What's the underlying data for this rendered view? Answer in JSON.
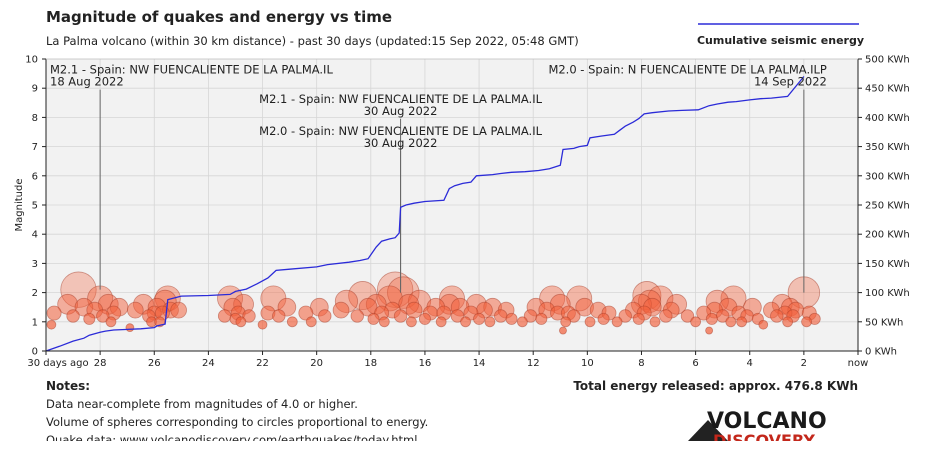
{
  "chart_data": {
    "type": "scatter",
    "title": "Magnitude of quakes and energy vs time",
    "subtitle": "La Palma volcano (within 30 km distance) - past 30 days (updated:15 Sep 2022, 05:48 GMT)",
    "ylabel": "Magnitude",
    "xlabel": "",
    "legend": {
      "label": "Cumulative seismic energy",
      "placement": "top-right",
      "color": "#2b2bd8"
    },
    "xlim": [
      30,
      0
    ],
    "ylim": [
      0,
      10
    ],
    "y2lim": [
      0,
      500
    ],
    "x_ticks": [
      {
        "x": 30,
        "label": "30 days ago"
      },
      {
        "x": 28,
        "label": "28"
      },
      {
        "x": 26,
        "label": "26"
      },
      {
        "x": 24,
        "label": "24"
      },
      {
        "x": 22,
        "label": "22"
      },
      {
        "x": 20,
        "label": "20"
      },
      {
        "x": 18,
        "label": "18"
      },
      {
        "x": 16,
        "label": "16"
      },
      {
        "x": 14,
        "label": "14"
      },
      {
        "x": 12,
        "label": "12"
      },
      {
        "x": 10,
        "label": "10"
      },
      {
        "x": 8,
        "label": "8"
      },
      {
        "x": 6,
        "label": "6"
      },
      {
        "x": 4,
        "label": "4"
      },
      {
        "x": 2,
        "label": "2"
      },
      {
        "x": 0,
        "label": "now"
      }
    ],
    "y_ticks": [
      {
        "y": 0,
        "label": "0"
      },
      {
        "y": 1,
        "label": "1"
      },
      {
        "y": 2,
        "label": "2"
      },
      {
        "y": 3,
        "label": "3"
      },
      {
        "y": 4,
        "label": "4"
      },
      {
        "y": 5,
        "label": "5"
      },
      {
        "y": 6,
        "label": "6"
      },
      {
        "y": 7,
        "label": "7"
      },
      {
        "y": 8,
        "label": "8"
      },
      {
        "y": 9,
        "label": "9"
      },
      {
        "y": 10,
        "label": "10"
      }
    ],
    "y2_ticks": [
      {
        "y": 0,
        "label": "0 KWh"
      },
      {
        "y": 50,
        "label": "50 KWh"
      },
      {
        "y": 100,
        "label": "100 KWh"
      },
      {
        "y": 150,
        "label": "150 KWh"
      },
      {
        "y": 200,
        "label": "200 KWh"
      },
      {
        "y": 250,
        "label": "250 KWh"
      },
      {
        "y": 300,
        "label": "300 KWh"
      },
      {
        "y": 350,
        "label": "350 KWh"
      },
      {
        "y": 400,
        "label": "400 KWh"
      },
      {
        "y": 450,
        "label": "450 KWh"
      },
      {
        "y": 500,
        "label": "500 KWh"
      }
    ],
    "grid": true,
    "quakes": [
      {
        "t": 29.8,
        "mag": 0.9
      },
      {
        "t": 29.7,
        "mag": 1.3
      },
      {
        "t": 29.2,
        "mag": 1.6
      },
      {
        "t": 29.0,
        "mag": 1.2
      },
      {
        "t": 28.8,
        "mag": 2.1
      },
      {
        "t": 28.6,
        "mag": 1.5
      },
      {
        "t": 28.4,
        "mag": 1.1
      },
      {
        "t": 28.2,
        "mag": 1.4
      },
      {
        "t": 28.0,
        "mag": 1.8
      },
      {
        "t": 27.9,
        "mag": 1.2
      },
      {
        "t": 27.7,
        "mag": 1.6
      },
      {
        "t": 27.6,
        "mag": 1.0
      },
      {
        "t": 27.5,
        "mag": 1.3
      },
      {
        "t": 27.3,
        "mag": 1.5
      },
      {
        "t": 26.9,
        "mag": 0.8
      },
      {
        "t": 26.7,
        "mag": 1.4
      },
      {
        "t": 26.4,
        "mag": 1.6
      },
      {
        "t": 26.2,
        "mag": 1.2
      },
      {
        "t": 26.1,
        "mag": 1.0
      },
      {
        "t": 26.0,
        "mag": 1.3
      },
      {
        "t": 25.9,
        "mag": 1.5
      },
      {
        "t": 25.8,
        "mag": 1.0
      },
      {
        "t": 25.7,
        "mag": 1.3
      },
      {
        "t": 25.6,
        "mag": 1.7
      },
      {
        "t": 25.5,
        "mag": 1.8
      },
      {
        "t": 25.4,
        "mag": 1.4
      },
      {
        "t": 25.1,
        "mag": 1.4
      },
      {
        "t": 23.4,
        "mag": 1.2
      },
      {
        "t": 23.2,
        "mag": 1.8
      },
      {
        "t": 23.1,
        "mag": 1.5
      },
      {
        "t": 23.0,
        "mag": 1.1
      },
      {
        "t": 22.9,
        "mag": 1.3
      },
      {
        "t": 22.8,
        "mag": 1.0
      },
      {
        "t": 22.7,
        "mag": 1.6
      },
      {
        "t": 22.5,
        "mag": 1.2
      },
      {
        "t": 22.0,
        "mag": 0.9
      },
      {
        "t": 21.8,
        "mag": 1.3
      },
      {
        "t": 21.6,
        "mag": 1.8
      },
      {
        "t": 21.4,
        "mag": 1.2
      },
      {
        "t": 21.1,
        "mag": 1.5
      },
      {
        "t": 20.9,
        "mag": 1.0
      },
      {
        "t": 20.4,
        "mag": 1.3
      },
      {
        "t": 20.2,
        "mag": 1.0
      },
      {
        "t": 19.9,
        "mag": 1.5
      },
      {
        "t": 19.7,
        "mag": 1.2
      },
      {
        "t": 19.1,
        "mag": 1.4
      },
      {
        "t": 18.9,
        "mag": 1.7
      },
      {
        "t": 18.5,
        "mag": 1.2
      },
      {
        "t": 18.3,
        "mag": 1.9
      },
      {
        "t": 18.1,
        "mag": 1.5
      },
      {
        "t": 17.9,
        "mag": 1.1
      },
      {
        "t": 17.8,
        "mag": 1.6
      },
      {
        "t": 17.6,
        "mag": 1.3
      },
      {
        "t": 17.5,
        "mag": 1.0
      },
      {
        "t": 17.3,
        "mag": 1.8
      },
      {
        "t": 17.2,
        "mag": 1.4
      },
      {
        "t": 17.1,
        "mag": 2.1
      },
      {
        "t": 16.9,
        "mag": 1.2
      },
      {
        "t": 16.8,
        "mag": 2.0
      },
      {
        "t": 16.6,
        "mag": 1.6
      },
      {
        "t": 16.5,
        "mag": 1.0
      },
      {
        "t": 16.4,
        "mag": 1.4
      },
      {
        "t": 16.2,
        "mag": 1.7
      },
      {
        "t": 16.0,
        "mag": 1.1
      },
      {
        "t": 15.8,
        "mag": 1.3
      },
      {
        "t": 15.6,
        "mag": 1.5
      },
      {
        "t": 15.4,
        "mag": 1.0
      },
      {
        "t": 15.3,
        "mag": 1.3
      },
      {
        "t": 15.1,
        "mag": 1.6
      },
      {
        "t": 15.0,
        "mag": 1.8
      },
      {
        "t": 14.8,
        "mag": 1.2
      },
      {
        "t": 14.7,
        "mag": 1.5
      },
      {
        "t": 14.5,
        "mag": 1.0
      },
      {
        "t": 14.3,
        "mag": 1.3
      },
      {
        "t": 14.1,
        "mag": 1.6
      },
      {
        "t": 14.0,
        "mag": 1.1
      },
      {
        "t": 13.8,
        "mag": 1.4
      },
      {
        "t": 13.6,
        "mag": 1.0
      },
      {
        "t": 13.5,
        "mag": 1.5
      },
      {
        "t": 13.2,
        "mag": 1.2
      },
      {
        "t": 13.0,
        "mag": 1.4
      },
      {
        "t": 12.8,
        "mag": 1.1
      },
      {
        "t": 12.4,
        "mag": 1.0
      },
      {
        "t": 12.1,
        "mag": 1.2
      },
      {
        "t": 11.9,
        "mag": 1.5
      },
      {
        "t": 11.7,
        "mag": 1.1
      },
      {
        "t": 11.5,
        "mag": 1.4
      },
      {
        "t": 11.3,
        "mag": 1.8
      },
      {
        "t": 11.1,
        "mag": 1.3
      },
      {
        "t": 11.0,
        "mag": 1.6
      },
      {
        "t": 10.9,
        "mag": 0.7
      },
      {
        "t": 10.8,
        "mag": 1.0
      },
      {
        "t": 10.7,
        "mag": 1.3
      },
      {
        "t": 10.5,
        "mag": 1.2
      },
      {
        "t": 10.3,
        "mag": 1.8
      },
      {
        "t": 10.1,
        "mag": 1.5
      },
      {
        "t": 9.9,
        "mag": 1.0
      },
      {
        "t": 9.6,
        "mag": 1.4
      },
      {
        "t": 9.4,
        "mag": 1.1
      },
      {
        "t": 9.2,
        "mag": 1.3
      },
      {
        "t": 8.9,
        "mag": 1.0
      },
      {
        "t": 8.6,
        "mag": 1.2
      },
      {
        "t": 8.3,
        "mag": 1.4
      },
      {
        "t": 8.1,
        "mag": 1.1
      },
      {
        "t": 8.0,
        "mag": 1.6
      },
      {
        "t": 7.9,
        "mag": 1.3
      },
      {
        "t": 7.8,
        "mag": 1.9
      },
      {
        "t": 7.7,
        "mag": 1.7
      },
      {
        "t": 7.6,
        "mag": 1.5
      },
      {
        "t": 7.5,
        "mag": 1.0
      },
      {
        "t": 7.3,
        "mag": 1.8
      },
      {
        "t": 7.1,
        "mag": 1.2
      },
      {
        "t": 6.9,
        "mag": 1.4
      },
      {
        "t": 6.7,
        "mag": 1.6
      },
      {
        "t": 6.3,
        "mag": 1.2
      },
      {
        "t": 6.0,
        "mag": 1.0
      },
      {
        "t": 5.7,
        "mag": 1.3
      },
      {
        "t": 5.5,
        "mag": 0.7
      },
      {
        "t": 5.4,
        "mag": 1.1
      },
      {
        "t": 5.3,
        "mag": 1.4
      },
      {
        "t": 5.2,
        "mag": 1.7
      },
      {
        "t": 5.0,
        "mag": 1.2
      },
      {
        "t": 4.8,
        "mag": 1.5
      },
      {
        "t": 4.7,
        "mag": 1.0
      },
      {
        "t": 4.6,
        "mag": 1.8
      },
      {
        "t": 4.4,
        "mag": 1.3
      },
      {
        "t": 4.3,
        "mag": 1.0
      },
      {
        "t": 4.1,
        "mag": 1.2
      },
      {
        "t": 3.9,
        "mag": 1.5
      },
      {
        "t": 3.7,
        "mag": 1.1
      },
      {
        "t": 3.5,
        "mag": 0.9
      },
      {
        "t": 3.2,
        "mag": 1.4
      },
      {
        "t": 3.0,
        "mag": 1.2
      },
      {
        "t": 2.8,
        "mag": 1.6
      },
      {
        "t": 2.7,
        "mag": 1.3
      },
      {
        "t": 2.6,
        "mag": 1.0
      },
      {
        "t": 2.5,
        "mag": 1.5
      },
      {
        "t": 2.4,
        "mag": 1.2
      },
      {
        "t": 2.3,
        "mag": 1.4
      },
      {
        "t": 2.0,
        "mag": 2.0
      },
      {
        "t": 1.9,
        "mag": 1.0
      },
      {
        "t": 1.8,
        "mag": 1.3
      },
      {
        "t": 1.6,
        "mag": 1.1
      }
    ],
    "cumulative_energy": [
      {
        "t": 30.0,
        "e": 0
      },
      {
        "t": 29.5,
        "e": 8
      },
      {
        "t": 29.0,
        "e": 17
      },
      {
        "t": 28.6,
        "e": 22
      },
      {
        "t": 28.4,
        "e": 27
      },
      {
        "t": 28.0,
        "e": 32
      },
      {
        "t": 27.8,
        "e": 34
      },
      {
        "t": 27.5,
        "e": 36
      },
      {
        "t": 26.5,
        "e": 38
      },
      {
        "t": 26.0,
        "e": 40
      },
      {
        "t": 25.9,
        "e": 43
      },
      {
        "t": 25.6,
        "e": 46
      },
      {
        "t": 25.5,
        "e": 88
      },
      {
        "t": 25.0,
        "e": 94
      },
      {
        "t": 24.0,
        "e": 95
      },
      {
        "t": 23.2,
        "e": 97
      },
      {
        "t": 23.0,
        "e": 102
      },
      {
        "t": 22.6,
        "e": 106
      },
      {
        "t": 22.2,
        "e": 115
      },
      {
        "t": 21.8,
        "e": 125
      },
      {
        "t": 21.5,
        "e": 138
      },
      {
        "t": 21.0,
        "e": 140
      },
      {
        "t": 20.0,
        "e": 144
      },
      {
        "t": 19.6,
        "e": 148
      },
      {
        "t": 18.8,
        "e": 152
      },
      {
        "t": 18.4,
        "e": 155
      },
      {
        "t": 18.1,
        "e": 158
      },
      {
        "t": 17.8,
        "e": 178
      },
      {
        "t": 17.6,
        "e": 188
      },
      {
        "t": 17.3,
        "e": 192
      },
      {
        "t": 17.1,
        "e": 194
      },
      {
        "t": 16.95,
        "e": 202
      },
      {
        "t": 16.9,
        "e": 246
      },
      {
        "t": 16.7,
        "e": 250
      },
      {
        "t": 16.4,
        "e": 253
      },
      {
        "t": 16.0,
        "e": 256
      },
      {
        "t": 15.3,
        "e": 258
      },
      {
        "t": 15.1,
        "e": 278
      },
      {
        "t": 14.9,
        "e": 283
      },
      {
        "t": 14.6,
        "e": 287
      },
      {
        "t": 14.3,
        "e": 289
      },
      {
        "t": 14.1,
        "e": 300
      },
      {
        "t": 13.5,
        "e": 302
      },
      {
        "t": 13.2,
        "e": 304
      },
      {
        "t": 12.8,
        "e": 306
      },
      {
        "t": 12.3,
        "e": 307
      },
      {
        "t": 11.8,
        "e": 309
      },
      {
        "t": 11.4,
        "e": 312
      },
      {
        "t": 11.0,
        "e": 318
      },
      {
        "t": 10.9,
        "e": 345
      },
      {
        "t": 10.5,
        "e": 347
      },
      {
        "t": 10.3,
        "e": 350
      },
      {
        "t": 10.0,
        "e": 352
      },
      {
        "t": 9.9,
        "e": 365
      },
      {
        "t": 9.5,
        "e": 368
      },
      {
        "t": 9.0,
        "e": 371
      },
      {
        "t": 8.8,
        "e": 378
      },
      {
        "t": 8.6,
        "e": 385
      },
      {
        "t": 8.3,
        "e": 392
      },
      {
        "t": 8.1,
        "e": 398
      },
      {
        "t": 7.9,
        "e": 406
      },
      {
        "t": 7.6,
        "e": 408
      },
      {
        "t": 7.0,
        "e": 411
      },
      {
        "t": 6.5,
        "e": 412
      },
      {
        "t": 5.9,
        "e": 413
      },
      {
        "t": 5.5,
        "e": 420
      },
      {
        "t": 5.2,
        "e": 423
      },
      {
        "t": 4.8,
        "e": 426
      },
      {
        "t": 4.5,
        "e": 427
      },
      {
        "t": 4.0,
        "e": 430
      },
      {
        "t": 3.6,
        "e": 432
      },
      {
        "t": 3.2,
        "e": 433
      },
      {
        "t": 2.6,
        "e": 436
      },
      {
        "t": 2.0,
        "e": 470
      }
    ],
    "annotations": [
      {
        "t": 28.0,
        "mag": 2.1,
        "lines": [
          "M2.1 - Spain: NW FUENCALIENTE DE LA PALMA.IL",
          "18 Aug 2022"
        ],
        "align": "left",
        "y": 9.5
      },
      {
        "t": 16.9,
        "mag": 2.1,
        "lines": [
          "M2.1 - Spain: NW FUENCALIENTE DE LA PALMA.IL",
          "30 Aug 2022"
        ],
        "align": "center",
        "y": 8.5
      },
      {
        "t": 16.9,
        "mag": 2.0,
        "lines": [
          "M2.0 - Spain: NW FUENCALIENTE DE LA PALMA.IL",
          "30 Aug 2022"
        ],
        "align": "center",
        "y": 7.4
      },
      {
        "t": 2.0,
        "mag": 2.0,
        "lines": [
          "M2.0 - Spain: N FUENCALIENTE DE LA PALMA.ILP",
          "14 Sep 2022"
        ],
        "align": "right",
        "y": 9.5
      }
    ]
  },
  "total_energy": "Total energy released: approx. 476.8 KWh",
  "notes": {
    "heading": "Notes:",
    "line1": "Data near-complete from magnitudes of 4.0 or higher.",
    "line2": "Volume of spheres corresponding to circles proportional to energy.",
    "line3": "Quake data: www.volcanodiscovery.com/earthquakes/today.html"
  },
  "logo": {
    "line1": "VOLCANO",
    "line2": "DISCOVERY"
  }
}
